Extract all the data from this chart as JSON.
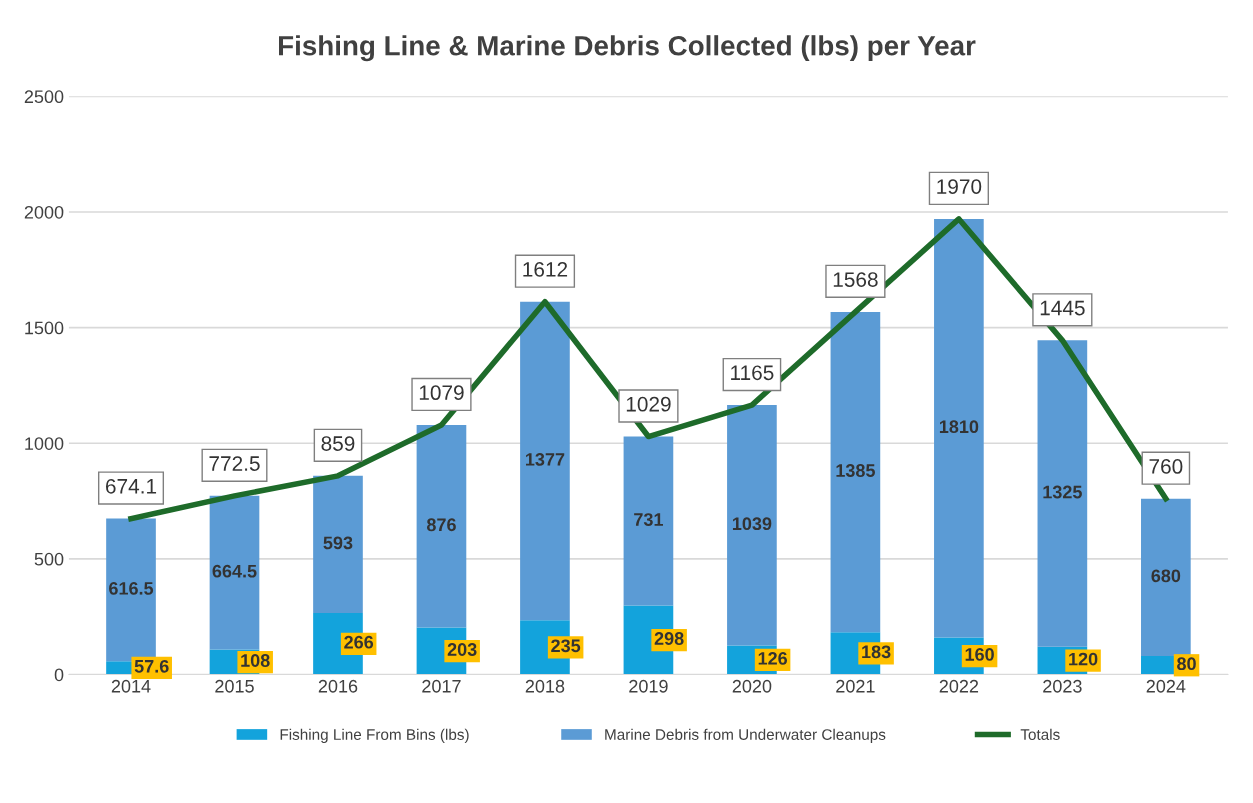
{
  "chart_data": {
    "type": "bar",
    "title": "Fishing Line & Marine Debris Collected (lbs) per Year",
    "categories": [
      "2014",
      "2015",
      "2016",
      "2017",
      "2018",
      "2019",
      "2020",
      "2021",
      "2022",
      "2023",
      "2024"
    ],
    "stacked": true,
    "series": [
      {
        "name": "Fishing Line From Bins (lbs)",
        "color": "#13a3dc",
        "values": [
          57.6,
          108,
          266,
          203,
          235,
          298,
          126,
          183,
          160,
          120,
          80
        ]
      },
      {
        "name": "Marine Debris from Underwater Cleanups",
        "color": "#5b9bd5",
        "values": [
          616.5,
          664.5,
          593,
          876,
          1377,
          731,
          1039,
          1385,
          1810,
          1325,
          680
        ]
      },
      {
        "name": "Totals",
        "type": "line",
        "color": "#1e6b2a",
        "values": [
          674.1,
          772.5,
          859,
          1079,
          1612,
          1029,
          1165,
          1568,
          1970,
          1445,
          760
        ]
      }
    ],
    "ylim": [
      0,
      2500
    ],
    "yticks": [
      0,
      500,
      1000,
      1500,
      2000,
      2500
    ],
    "grid": "y",
    "legend": "bottom",
    "marker": "none",
    "data_labels": true
  }
}
